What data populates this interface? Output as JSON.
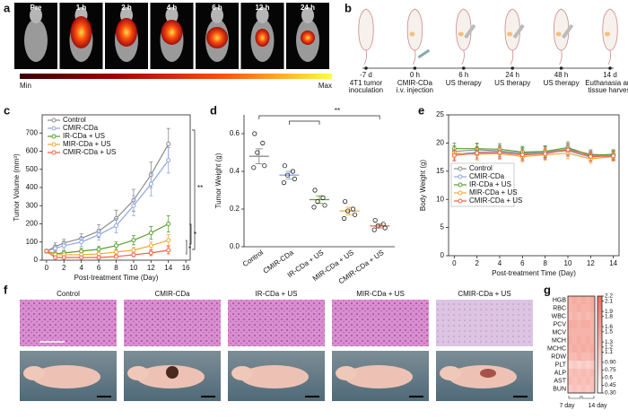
{
  "panel_labels": [
    "a",
    "b",
    "c",
    "d",
    "e",
    "f",
    "g"
  ],
  "panel_a": {
    "times": [
      "Pre",
      "1 h",
      "2 h",
      "4 h",
      "6 h",
      "12 h",
      "24 h"
    ],
    "scale_min": "Min",
    "scale_max": "Max"
  },
  "panel_b": {
    "timeline": [
      {
        "time": "-7 d",
        "event": [
          "4T1 tumor",
          "inoculation"
        ]
      },
      {
        "time": "0 h",
        "event": [
          "CMIR-CDa",
          "i.v. injection"
        ]
      },
      {
        "time": "6 h",
        "event": [
          "US therapy"
        ]
      },
      {
        "time": "24 h",
        "event": [
          "US therapy"
        ]
      },
      {
        "time": "48 h",
        "event": [
          "US therapy"
        ]
      },
      {
        "time": "14 d",
        "event": [
          "Euthanasia and",
          "tissue harvest"
        ]
      }
    ]
  },
  "panel_f": {
    "groups": [
      "Control",
      "CMIR-CDa",
      "IR-CDa + US",
      "MIR-CDa + US",
      "CMIR-CDa + US"
    ]
  },
  "chart_data": [
    {
      "type": "line",
      "xlabel": "Post-treatment Time (Day)",
      "ylabel": "Tumor Volume (mm³)",
      "x": [
        0,
        1,
        2,
        4,
        6,
        8,
        10,
        12,
        14
      ],
      "xlim": [
        -0.5,
        16.5
      ],
      "xticks": [
        0,
        2,
        4,
        6,
        8,
        10,
        12,
        14,
        16
      ],
      "ylim": [
        0,
        800
      ],
      "yticks": [
        0,
        100,
        200,
        300,
        400,
        500,
        600,
        700
      ],
      "legend": "upper left",
      "annotations": [
        "**",
        "*",
        "*"
      ],
      "series": [
        {
          "name": "Control",
          "color": "#8c8c8c",
          "values": [
            50,
            75,
            95,
            120,
            160,
            230,
            330,
            470,
            640
          ],
          "errors": [
            10,
            20,
            20,
            25,
            35,
            45,
            60,
            70,
            85
          ]
        },
        {
          "name": "CMIR-CDa",
          "color": "#8fa6e0",
          "values": [
            50,
            65,
            80,
            100,
            140,
            190,
            300,
            420,
            550
          ],
          "errors": [
            10,
            15,
            20,
            25,
            30,
            40,
            55,
            65,
            70
          ]
        },
        {
          "name": "IR-CDa + US",
          "color": "#5a9e2f",
          "values": [
            50,
            35,
            40,
            50,
            60,
            80,
            110,
            150,
            200
          ],
          "errors": [
            10,
            10,
            12,
            15,
            15,
            20,
            25,
            35,
            45
          ]
        },
        {
          "name": "MIR-CDa + US",
          "color": "#f0a830",
          "values": [
            50,
            30,
            30,
            30,
            35,
            45,
            55,
            80,
            110
          ],
          "errors": [
            10,
            8,
            8,
            10,
            10,
            12,
            15,
            20,
            30
          ]
        },
        {
          "name": "CMIR-CDa + US",
          "color": "#f06040",
          "values": [
            50,
            15,
            15,
            15,
            15,
            20,
            30,
            40,
            55
          ],
          "errors": [
            10,
            5,
            5,
            5,
            6,
            8,
            10,
            15,
            20
          ]
        }
      ]
    },
    {
      "type": "dot",
      "ylabel": "Tumor Weight (g)",
      "categories": [
        "Control",
        "CMIR-CDa",
        "IR-CDa + US",
        "MIR-CDa + US",
        "CMIR-CDa + US"
      ],
      "colors": [
        "#8c8c8c",
        "#8fa6e0",
        "#5a9e2f",
        "#f0a830",
        "#f06040"
      ],
      "points": [
        [
          0.6,
          0.55,
          0.5,
          0.43,
          0.42
        ],
        [
          0.43,
          0.4,
          0.38,
          0.36,
          0.34
        ],
        [
          0.3,
          0.26,
          0.24,
          0.22,
          0.21
        ],
        [
          0.24,
          0.2,
          0.19,
          0.17,
          0.15
        ],
        [
          0.14,
          0.12,
          0.11,
          0.1,
          0.09
        ]
      ],
      "means": [
        0.48,
        0.38,
        0.25,
        0.19,
        0.11
      ],
      "errors": [
        0.04,
        0.02,
        0.02,
        0.02,
        0.01
      ],
      "ylim": [
        0,
        0.7
      ],
      "yticks": [
        {
          "value": 0,
          "label": "0.0"
        },
        0.2,
        0.4,
        0.6
      ],
      "annotations": [
        "**"
      ]
    },
    {
      "type": "line",
      "xlabel": "Post-treatment Time (Day)",
      "ylabel": "Body Weight (g)",
      "x": [
        0,
        2,
        4,
        6,
        8,
        10,
        12,
        14
      ],
      "xlim": [
        -0.5,
        14.5
      ],
      "xticks": [
        0,
        2,
        4,
        6,
        8,
        10,
        12,
        14
      ],
      "ylim": [
        0,
        25
      ],
      "yticks": [
        0,
        5,
        10,
        15,
        20,
        25
      ],
      "legend": "center left",
      "series": [
        {
          "name": "Control",
          "color": "#8c8c8c",
          "values": [
            18.5,
            18.8,
            18.6,
            18.2,
            18.4,
            18.9,
            18.0,
            17.8
          ],
          "errors": [
            1,
            1,
            1,
            1,
            1,
            1,
            0.8,
            0.8
          ]
        },
        {
          "name": "CMIR-CDa",
          "color": "#8fa6e0",
          "values": [
            18.0,
            18.4,
            18.5,
            18.0,
            18.3,
            18.6,
            17.5,
            17.9
          ],
          "errors": [
            1,
            1,
            1,
            1,
            1,
            1,
            0.8,
            0.8
          ]
        },
        {
          "name": "IR-CDa + US",
          "color": "#5a9e2f",
          "values": [
            19.0,
            19.0,
            18.9,
            18.4,
            18.5,
            19.2,
            17.8,
            18.0
          ],
          "errors": [
            1,
            1,
            1,
            1,
            1,
            1,
            0.8,
            0.8
          ]
        },
        {
          "name": "MIR-CDa + US",
          "color": "#f0a830",
          "values": [
            18.2,
            18.0,
            18.1,
            17.6,
            17.9,
            18.2,
            17.2,
            17.6
          ],
          "errors": [
            1,
            1,
            1,
            1,
            1,
            1,
            0.8,
            0.8
          ]
        },
        {
          "name": "CMIR-CDa + US",
          "color": "#f06040",
          "values": [
            17.8,
            18.2,
            18.3,
            17.9,
            18.1,
            18.8,
            17.6,
            17.7
          ],
          "errors": [
            1,
            1,
            1,
            1,
            1,
            1,
            0.8,
            0.8
          ]
        }
      ]
    },
    {
      "type": "heatmap",
      "rows": [
        "HGB",
        "RBC",
        "WBC",
        "PCV",
        "MCV",
        "MCH",
        "MCHC",
        "RDW",
        "PLT",
        "ALP",
        "AST",
        "BUN"
      ],
      "groups": [
        "7 day",
        "14 day"
      ],
      "values": [
        [
          1.3,
          1.4,
          1.3,
          1.4,
          1.3,
          1.4
        ],
        [
          1.3,
          1.3,
          1.4,
          1.3,
          1.3,
          1.4
        ],
        [
          1.2,
          1.3,
          1.2,
          1.3,
          1.2,
          1.3
        ],
        [
          1.4,
          1.4,
          1.3,
          1.4,
          1.4,
          1.3
        ],
        [
          1.3,
          1.3,
          1.3,
          1.3,
          1.3,
          1.3
        ],
        [
          1.4,
          1.3,
          1.4,
          1.3,
          1.4,
          1.3
        ],
        [
          1.3,
          1.4,
          1.3,
          1.4,
          1.3,
          1.4
        ],
        [
          1.2,
          1.2,
          1.3,
          1.2,
          1.2,
          1.3
        ],
        [
          0.9,
          1.0,
          0.9,
          1.0,
          0.9,
          1.0
        ],
        [
          1.1,
          1.2,
          1.1,
          1.2,
          1.1,
          1.2
        ],
        [
          1.2,
          1.1,
          1.2,
          1.1,
          1.2,
          1.1
        ],
        [
          1.0,
          1.1,
          1.0,
          1.1,
          1.0,
          1.1
        ]
      ],
      "clim": [
        0.3,
        2.2
      ],
      "colors": [
        "#ffffff",
        "#ee6f5e"
      ],
      "cticks": [
        2.2,
        2.1,
        1.9,
        1.8,
        1.6,
        1.5,
        1.3,
        1.2,
        1.1,
        {
          "value": 0.9,
          "label": "0.90"
        },
        0.75,
        0.6,
        0.45,
        {
          "value": 0.3,
          "label": "0.30"
        }
      ]
    }
  ]
}
